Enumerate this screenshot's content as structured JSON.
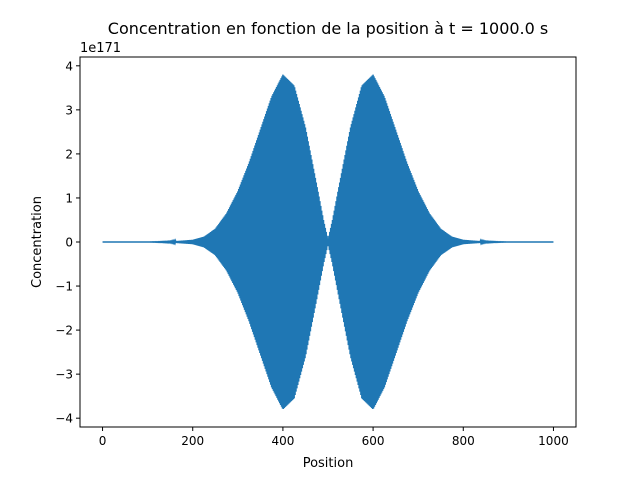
{
  "chart_data": {
    "type": "line",
    "title": "Concentration en fonction de la position à t = 1000.0 s",
    "xlabel": "Position",
    "ylabel": "Concentration",
    "offset_label": "1e171",
    "xlim": [
      -50,
      1050
    ],
    "ylim": [
      -4.2,
      4.2
    ],
    "y_scale_factor": 1e+171,
    "x_ticks": [
      0,
      200,
      400,
      600,
      800,
      1000
    ],
    "x_tick_labels": [
      "0",
      "200",
      "400",
      "600",
      "800",
      "1000"
    ],
    "y_ticks": [
      -4,
      -3,
      -2,
      -1,
      0,
      1,
      2,
      3,
      4
    ],
    "y_tick_labels": [
      "−4",
      "−3",
      "−2",
      "−1",
      "0",
      "1",
      "2",
      "3",
      "4"
    ],
    "grid": false,
    "series": [
      {
        "color": "#1f77b4",
        "x_range": [
          0,
          1000
        ],
        "note": "rapidly oscillating signal, amplitude envelope shown in y_envelope (units of 1e171)",
        "envelope_x": [
          0,
          100,
          150,
          200,
          225,
          250,
          275,
          300,
          325,
          350,
          375,
          400,
          425,
          450,
          475,
          490,
          500,
          510,
          525,
          550,
          575,
          600,
          625,
          650,
          675,
          700,
          725,
          750,
          775,
          800,
          850,
          900,
          1000
        ],
        "y_envelope": [
          0,
          0,
          0.01,
          0.05,
          0.12,
          0.3,
          0.65,
          1.15,
          1.8,
          2.55,
          3.3,
          3.8,
          3.55,
          2.6,
          1.3,
          0.5,
          0.05,
          0.5,
          1.3,
          2.6,
          3.55,
          3.8,
          3.3,
          2.55,
          1.8,
          1.15,
          0.65,
          0.3,
          0.12,
          0.05,
          0.01,
          0,
          0
        ]
      }
    ]
  }
}
